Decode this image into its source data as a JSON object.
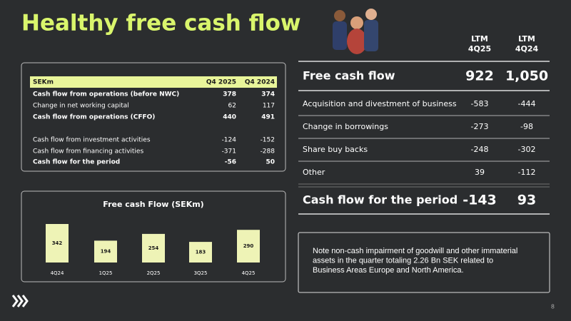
{
  "title": "Healthy free cash flow",
  "quarter_table": {
    "header": [
      "SEKm",
      "Q4 2025",
      "Q4 2024"
    ],
    "rows": [
      {
        "label": "Cash flow from operations (before NWC)",
        "cells": [
          "378",
          "374"
        ],
        "bold": true
      },
      {
        "label": "Change in net working capital",
        "cells": [
          "62",
          "117"
        ],
        "bold": false
      },
      {
        "label": "Cash flow from operations (CFFO)",
        "cells": [
          "440",
          "491"
        ],
        "bold": true
      },
      {
        "label": "Cash flow from investment activities",
        "cells": [
          "-124",
          "-152"
        ],
        "bold": false
      },
      {
        "label": "Cash flow from financing activities",
        "cells": [
          "-371",
          "-288"
        ],
        "bold": false
      },
      {
        "label": "Cash flow for the period",
        "cells": [
          "-56",
          "50"
        ],
        "bold": true
      }
    ]
  },
  "chart_data": {
    "type": "bar",
    "title": "Free cash Flow (SEKm)",
    "categories": [
      "4Q24",
      "1Q25",
      "2Q25",
      "3Q25",
      "4Q25"
    ],
    "values": [
      342,
      194,
      254,
      183,
      290
    ],
    "color": "#eef3b6"
  },
  "ltm_table": {
    "columns": [
      [
        "LTM",
        "4Q25"
      ],
      [
        "LTM",
        "4Q24"
      ]
    ],
    "rows": [
      {
        "label": "Free cash flow",
        "cells": [
          "922",
          "1,050"
        ],
        "large": true
      },
      {
        "label": "Acquisition and divestment of business",
        "cells": [
          "-583",
          "-444"
        ],
        "large": false
      },
      {
        "label": "Change in borrowings",
        "cells": [
          "-273",
          "-98"
        ],
        "large": false
      },
      {
        "label": "Share buy backs",
        "cells": [
          "-248",
          "-302"
        ],
        "large": false
      },
      {
        "label": "Other",
        "cells": [
          "39",
          "-112"
        ],
        "large": false
      },
      {
        "label": "Cash flow for the period",
        "cells": [
          "-143",
          "93"
        ],
        "large": true
      }
    ]
  },
  "note": [
    "Note non-cash impairment of goodwill and other immaterial",
    "assets in the quarter totaling 2.26 Bn SEK related to",
    "Business Areas Europe and North America."
  ],
  "page_number": "8"
}
